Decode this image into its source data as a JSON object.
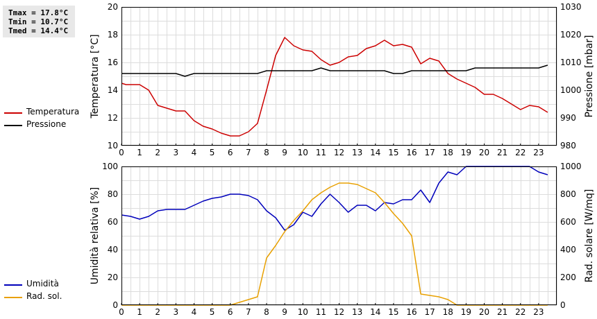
{
  "stats": {
    "tmax": "Tmax = 17.8°C",
    "tmin": "Tmin = 10.7°C",
    "tmed": "Tmed = 14.4°C"
  },
  "legend_top": [
    {
      "label": "Temperatura",
      "color": "#cc0000"
    },
    {
      "label": "Pressione",
      "color": "#000000"
    }
  ],
  "legend_bottom": [
    {
      "label": "Umidità",
      "color": "#0000bb"
    },
    {
      "label": "Rad. sol.",
      "color": "#e8a000"
    }
  ],
  "chart_data": [
    {
      "type": "line",
      "grid": true,
      "xlim": [
        0,
        24
      ],
      "x_ticks": [
        0,
        1,
        2,
        3,
        4,
        5,
        6,
        7,
        8,
        9,
        10,
        11,
        12,
        13,
        14,
        15,
        16,
        17,
        18,
        19,
        20,
        21,
        22,
        23
      ],
      "ylabel": "Temperatura [°C]",
      "ylim": [
        10,
        20
      ],
      "y_ticks": [
        10,
        12,
        14,
        16,
        18,
        20
      ],
      "y2label": "Pressione [mbar]",
      "y2lim": [
        980,
        1030
      ],
      "y2_ticks": [
        980,
        990,
        1000,
        1010,
        1020,
        1030
      ],
      "series": [
        {
          "name": "Temperatura",
          "axis": "left",
          "color": "#cc0000",
          "x": [
            0,
            0.25,
            0.5,
            1,
            1.5,
            2,
            2.5,
            3,
            3.5,
            4,
            4.5,
            5,
            5.5,
            6,
            6.5,
            7,
            7.5,
            8,
            8.5,
            9,
            9.5,
            10,
            10.5,
            11,
            11.5,
            12,
            12.5,
            13,
            13.5,
            14,
            14.5,
            15,
            15.5,
            16,
            16.5,
            17,
            17.5,
            18,
            18.5,
            19,
            19.5,
            20,
            20.5,
            21,
            21.5,
            22,
            22.5,
            23,
            23.5
          ],
          "values": [
            14.5,
            14.4,
            14.4,
            14.4,
            14.0,
            12.9,
            12.7,
            12.5,
            12.5,
            11.8,
            11.4,
            11.2,
            10.9,
            10.7,
            10.7,
            11.0,
            11.6,
            14.0,
            16.5,
            17.8,
            17.2,
            16.9,
            16.8,
            16.2,
            15.8,
            16.0,
            16.4,
            16.5,
            17.0,
            17.2,
            17.6,
            17.2,
            17.3,
            17.1,
            15.9,
            16.3,
            16.1,
            15.2,
            14.8,
            14.5,
            14.2,
            13.7,
            13.7,
            13.4,
            13.0,
            12.6,
            12.9,
            12.8,
            12.4
          ]
        },
        {
          "name": "Pressione",
          "axis": "right",
          "color": "#000000",
          "x": [
            0,
            0.5,
            1,
            1.5,
            2,
            2.5,
            3,
            3.5,
            4,
            4.5,
            5,
            5.5,
            6,
            6.5,
            7,
            7.5,
            8,
            8.5,
            9,
            9.5,
            10,
            10.5,
            11,
            11.5,
            12,
            12.5,
            13,
            13.5,
            14,
            14.5,
            15,
            15.5,
            16,
            16.5,
            17,
            17.5,
            18,
            18.5,
            19,
            19.5,
            20,
            20.5,
            21,
            21.5,
            22,
            22.5,
            23,
            23.5
          ],
          "values": [
            1006,
            1006,
            1006,
            1006,
            1006,
            1006,
            1006,
            1005,
            1006,
            1006,
            1006,
            1006,
            1006,
            1006,
            1006,
            1006,
            1007,
            1007,
            1007,
            1007,
            1007,
            1007,
            1008,
            1007,
            1007,
            1007,
            1007,
            1007,
            1007,
            1007,
            1006,
            1006,
            1007,
            1007,
            1007,
            1007,
            1007,
            1007,
            1007,
            1008,
            1008,
            1008,
            1008,
            1008,
            1008,
            1008,
            1008,
            1009
          ]
        }
      ]
    },
    {
      "type": "line",
      "grid": true,
      "xlim": [
        0,
        24
      ],
      "x_ticks": [
        0,
        1,
        2,
        3,
        4,
        5,
        6,
        7,
        8,
        9,
        10,
        11,
        12,
        13,
        14,
        15,
        16,
        17,
        18,
        19,
        20,
        21,
        22,
        23
      ],
      "ylabel": "Umidità relativa [%]",
      "ylim": [
        0,
        100
      ],
      "y_ticks": [
        0,
        20,
        40,
        60,
        80,
        100
      ],
      "y2label": "Rad. solare [W/mq]",
      "y2lim": [
        0,
        1000
      ],
      "y2_ticks": [
        0,
        200,
        400,
        600,
        800,
        1000
      ],
      "series": [
        {
          "name": "Umidità",
          "axis": "left",
          "color": "#0000bb",
          "x": [
            0,
            0.5,
            1,
            1.5,
            2,
            2.5,
            3,
            3.5,
            4,
            4.5,
            5,
            5.5,
            6,
            6.5,
            7,
            7.5,
            8,
            8.5,
            9,
            9.5,
            10,
            10.5,
            11,
            11.5,
            12,
            12.5,
            13,
            13.5,
            14,
            14.5,
            15,
            15.5,
            16,
            16.5,
            17,
            17.5,
            18,
            18.5,
            19,
            19.5,
            20,
            20.5,
            21,
            21.5,
            22,
            22.5,
            23,
            23.5
          ],
          "values": [
            65,
            64,
            62,
            64,
            68,
            69,
            69,
            69,
            72,
            75,
            77,
            78,
            80,
            80,
            79,
            76,
            68,
            63,
            54,
            58,
            67,
            64,
            73,
            80,
            74,
            67,
            72,
            72,
            68,
            74,
            73,
            76,
            76,
            83,
            74,
            88,
            96,
            94,
            100,
            100,
            100,
            100,
            100,
            100,
            100,
            100,
            96,
            94
          ]
        },
        {
          "name": "Rad. sol.",
          "axis": "right",
          "color": "#e8a000",
          "x": [
            0,
            6,
            6.5,
            7,
            7.5,
            8,
            8.5,
            9,
            9.5,
            10,
            10.5,
            11,
            11.5,
            12,
            12.5,
            13,
            13.5,
            14,
            14.5,
            15,
            15.5,
            16,
            16.5,
            17,
            17.5,
            18,
            18.5,
            19,
            23.5
          ],
          "values": [
            0,
            0,
            20,
            40,
            60,
            340,
            430,
            530,
            610,
            680,
            760,
            810,
            850,
            880,
            880,
            870,
            840,
            810,
            740,
            660,
            590,
            500,
            80,
            70,
            60,
            40,
            0,
            0,
            0
          ]
        }
      ]
    }
  ]
}
